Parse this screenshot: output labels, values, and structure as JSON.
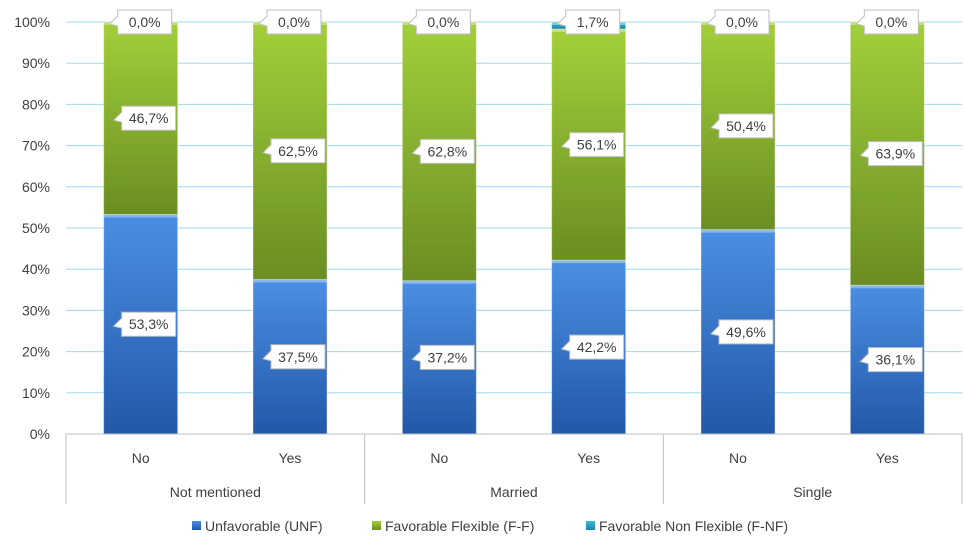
{
  "chart_data": {
    "type": "bar",
    "stacked": true,
    "percent_axis": true,
    "y_ticks": [
      "0%",
      "10%",
      "20%",
      "30%",
      "40%",
      "50%",
      "60%",
      "70%",
      "80%",
      "90%",
      "100%"
    ],
    "ylim": [
      0,
      100
    ],
    "groups": [
      {
        "label": "Not mentioned",
        "categories": [
          "No",
          "Yes"
        ]
      },
      {
        "label": "Married",
        "categories": [
          "No",
          "Yes"
        ]
      },
      {
        "label": "Single",
        "categories": [
          "No",
          "Yes"
        ]
      }
    ],
    "series": [
      {
        "name": "Unfavorable (UNF)",
        "color": "#3b7dd8",
        "values": [
          53.3,
          37.5,
          37.2,
          42.2,
          49.6,
          36.1
        ],
        "labels": [
          "53,3%",
          "37,5%",
          "37,2%",
          "42,2%",
          "49,6%",
          "36,1%"
        ]
      },
      {
        "name": "Favorable Flexible (F-F)",
        "color": "#8dbb2e",
        "values": [
          46.7,
          62.5,
          62.8,
          56.1,
          50.4,
          63.9
        ],
        "labels": [
          "46,7%",
          "62,5%",
          "62,8%",
          "56,1%",
          "50,4%",
          "63,9%"
        ]
      },
      {
        "name": "Favorable Non Flexible (F-NF)",
        "color": "#2aa5c7",
        "values": [
          0.0,
          0.0,
          0.0,
          1.7,
          0.0,
          0.0
        ],
        "labels": [
          "0,0%",
          "0,0%",
          "0,0%",
          "1,7%",
          "0,0%",
          "0,0%"
        ]
      }
    ],
    "grid": true,
    "legend_position": "bottom"
  }
}
